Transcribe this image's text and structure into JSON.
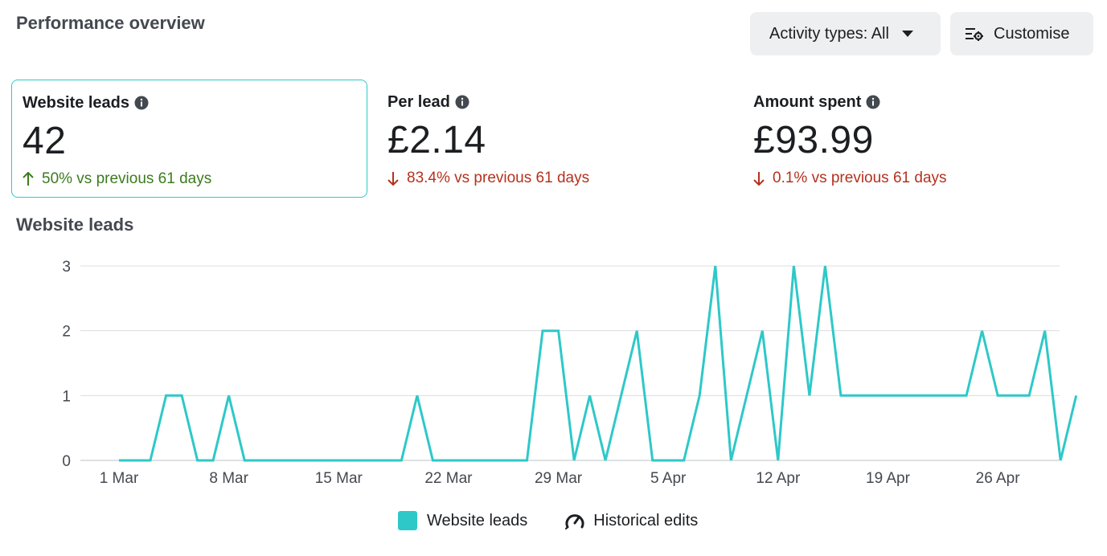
{
  "header": {
    "title": "Performance overview",
    "activity_button": "Activity types: All",
    "customise_button": "Customise"
  },
  "metrics": [
    {
      "label": "Website leads",
      "value": "42",
      "delta": "50% vs previous 61 days",
      "direction": "up"
    },
    {
      "label": "Per lead",
      "value": "£2.14",
      "delta": "83.4% vs previous 61 days",
      "direction": "down"
    },
    {
      "label": "Amount spent",
      "value": "£93.99",
      "delta": "0.1% vs previous 61 days",
      "direction": "down"
    }
  ],
  "chart_section": {
    "title": "Website leads"
  },
  "legend": {
    "series": "Website leads",
    "historical": "Historical edits"
  },
  "colors": {
    "series": "#2ec8c8",
    "up": "#3c7b1e",
    "down": "#b4321e",
    "grid": "#dadde1",
    "selected_border": "#2ec8c8"
  },
  "chart_data": {
    "type": "line",
    "title": "Website leads",
    "xlabel": "",
    "ylabel": "",
    "ylim": [
      0,
      3
    ],
    "yticks": [
      0,
      1,
      2,
      3
    ],
    "xticks": [
      "1 Mar",
      "8 Mar",
      "15 Mar",
      "22 Mar",
      "29 Mar",
      "5 Apr",
      "12 Apr",
      "19 Apr",
      "26 Apr"
    ],
    "grid": true,
    "legend_position": "bottom",
    "series": [
      {
        "name": "Website leads",
        "x_start": "1 Mar",
        "values": [
          0,
          0,
          0,
          1,
          1,
          0,
          0,
          1,
          0,
          0,
          0,
          0,
          0,
          0,
          0,
          0,
          0,
          0,
          0,
          1,
          0,
          0,
          0,
          0,
          0,
          0,
          0,
          2,
          2,
          0,
          1,
          0,
          1,
          2,
          0,
          0,
          0,
          1,
          3,
          0,
          1,
          2,
          0,
          3,
          1,
          3,
          1,
          1,
          1,
          1,
          1,
          1,
          1,
          1,
          1,
          2,
          1,
          1,
          1,
          2,
          0,
          1
        ]
      }
    ]
  }
}
